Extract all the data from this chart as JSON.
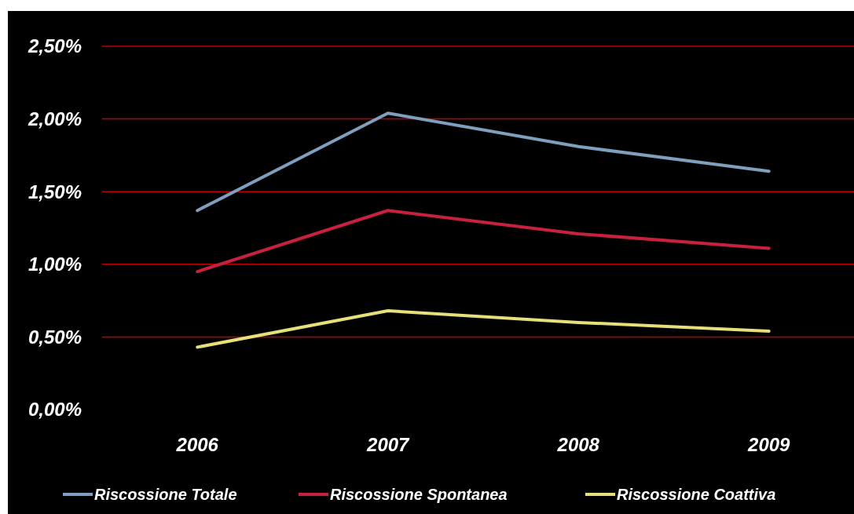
{
  "chart_data": {
    "type": "line",
    "categories": [
      "2006",
      "2007",
      "2008",
      "2009"
    ],
    "series": [
      {
        "name": "Riscossione Totale",
        "color": "#7f9fbf",
        "values": [
          1.37,
          2.04,
          1.81,
          1.64
        ]
      },
      {
        "name": "Riscossione Spontanea",
        "color": "#c8203f",
        "values": [
          0.95,
          1.37,
          1.21,
          1.11
        ]
      },
      {
        "name": "Riscossione Coattiva",
        "color": "#e6df7a",
        "values": [
          0.43,
          0.68,
          0.6,
          0.54
        ]
      }
    ],
    "ylim": [
      0,
      2.5
    ],
    "yticks": [
      {
        "value": 0,
        "label": "0,00%"
      },
      {
        "value": 0.5,
        "label": "0,50%"
      },
      {
        "value": 1,
        "label": "1,00%"
      },
      {
        "value": 1.5,
        "label": "1,50%"
      },
      {
        "value": 2,
        "label": "2,00%"
      },
      {
        "value": 2.5,
        "label": "2,50%"
      }
    ],
    "grid": "y",
    "legend": "bottom",
    "marker": "none",
    "line_style": "solid"
  }
}
